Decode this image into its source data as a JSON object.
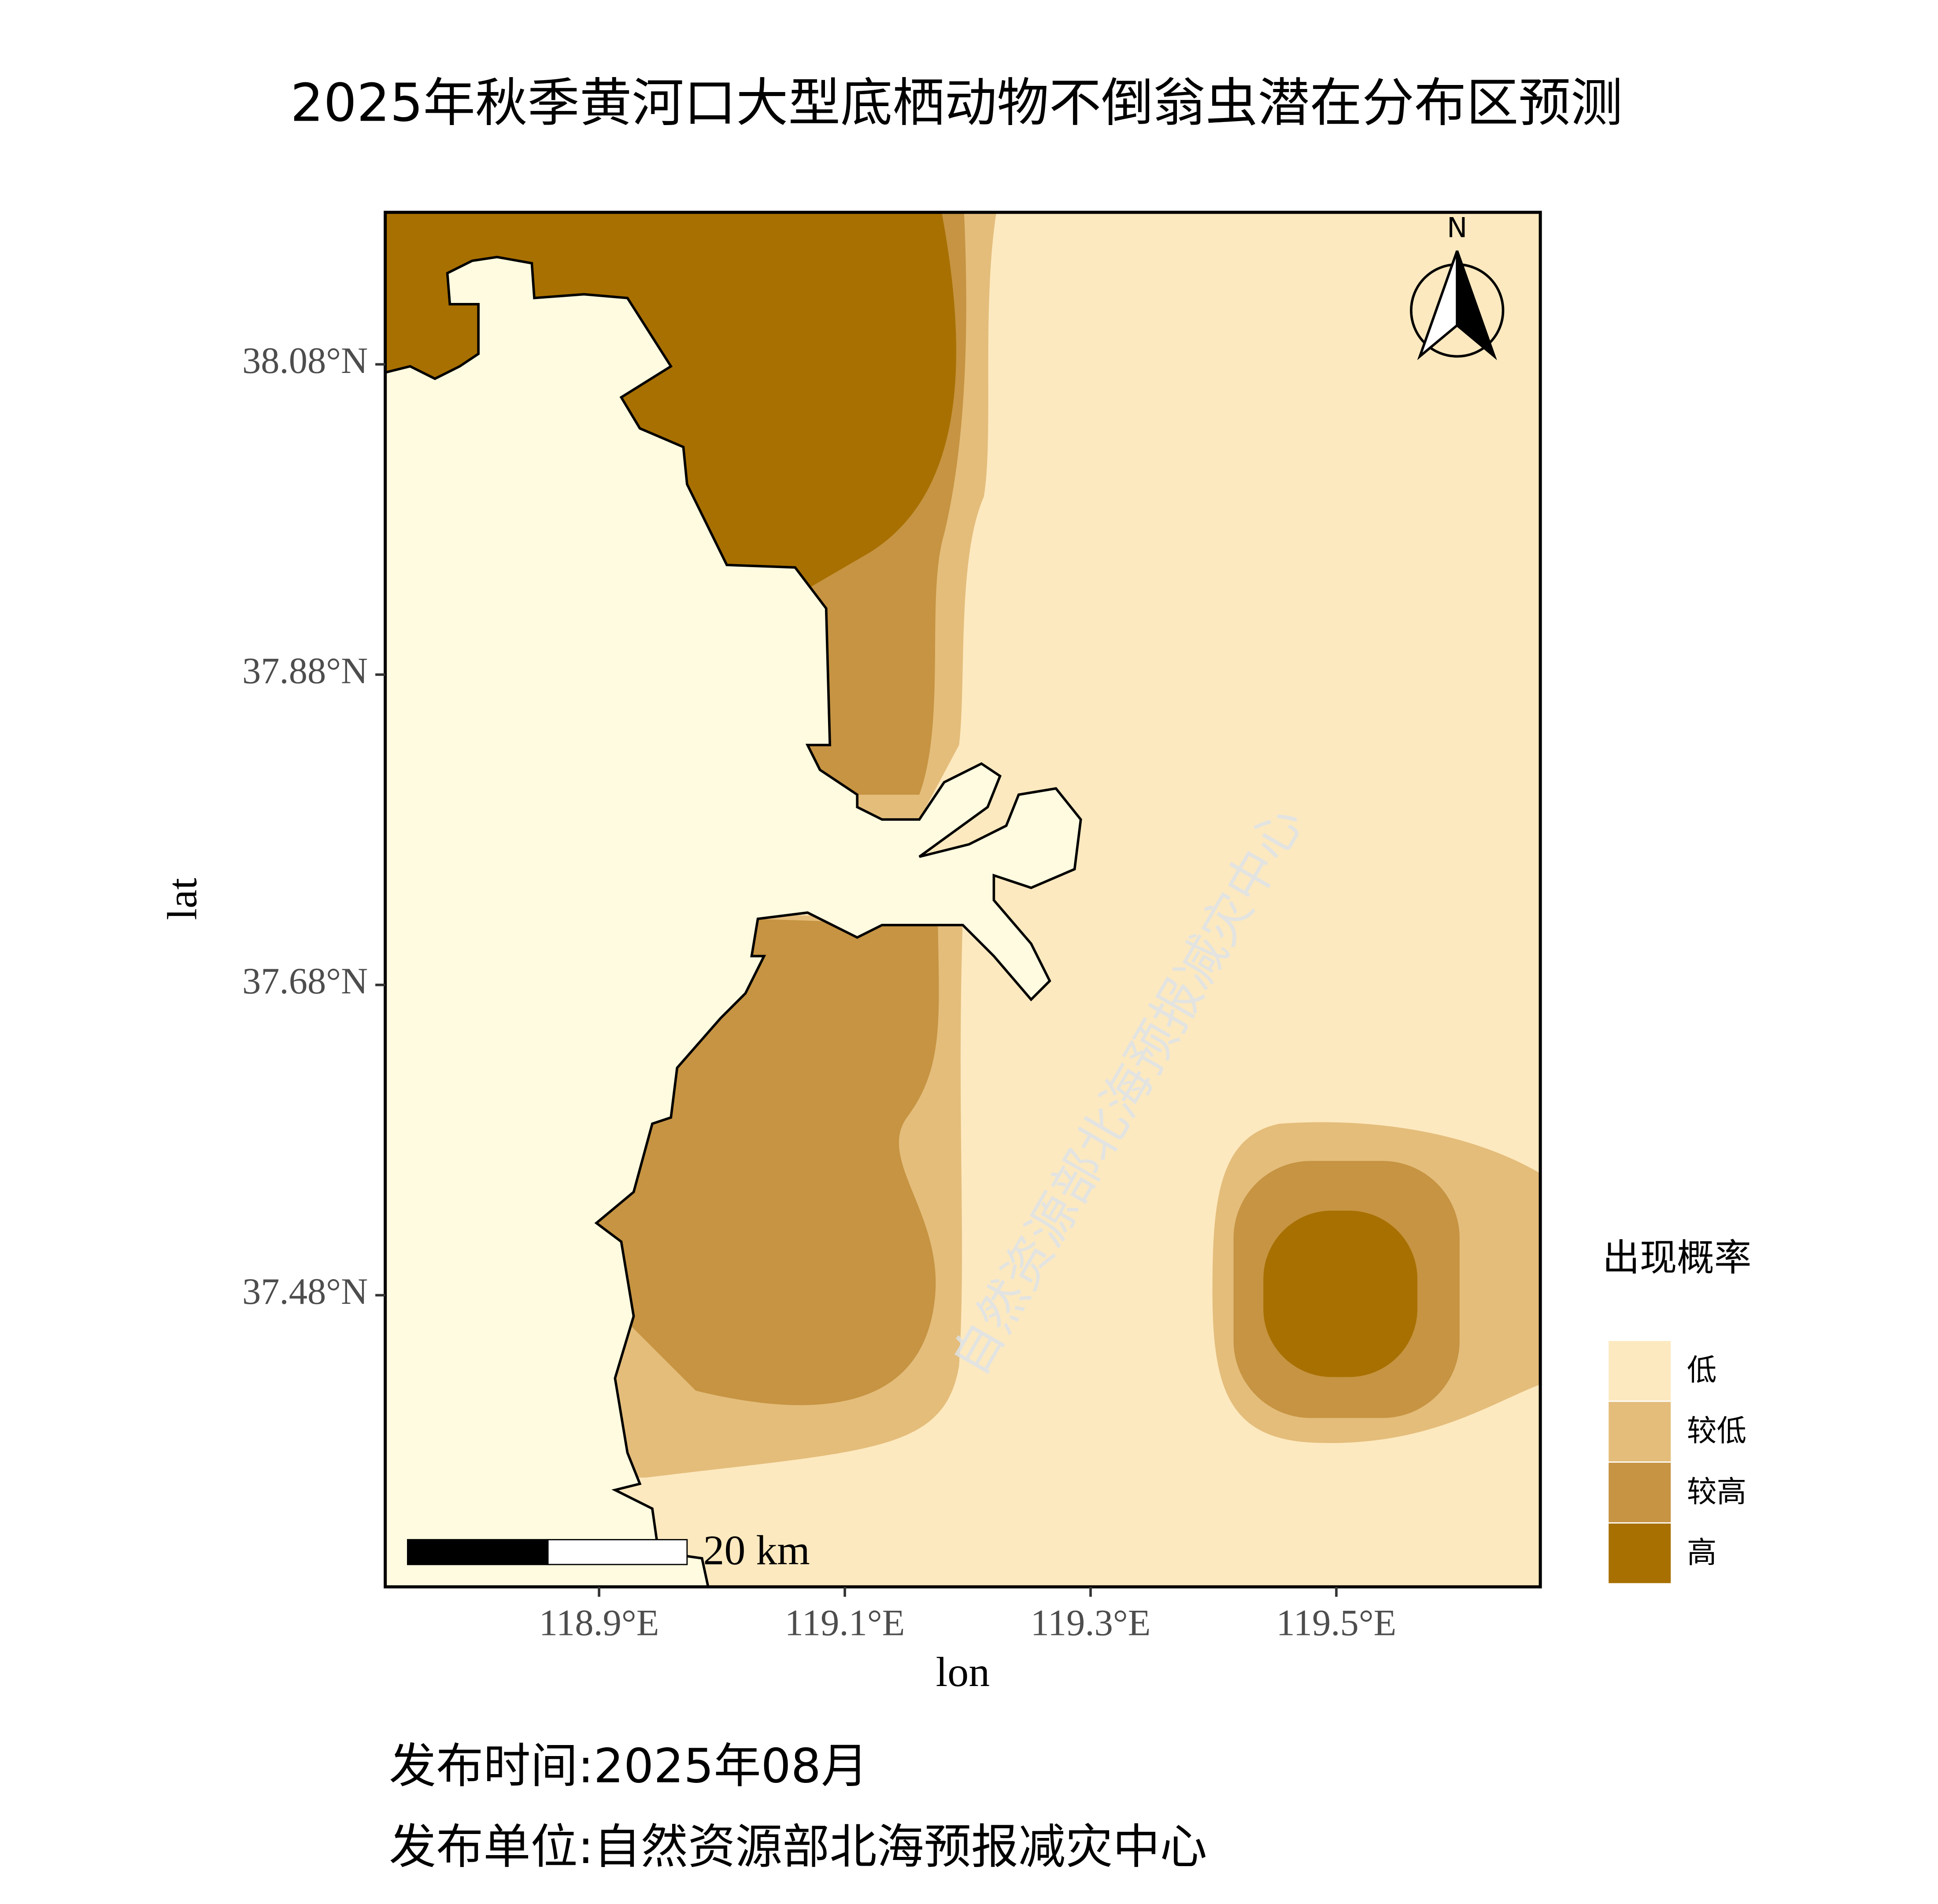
{
  "chart_data": {
    "type": "map",
    "title": "2025年秋季黄河口大型底栖动物不倒翁虫潜在分布区预测",
    "x_label": "lon",
    "y_label": "lat",
    "xlim": [
      118.726,
      119.666
    ],
    "ylim": [
      37.292,
      38.178
    ],
    "xticks": [
      {
        "value": 118.9,
        "label": "118.9°E"
      },
      {
        "value": 119.1,
        "label": "119.1°E"
      },
      {
        "value": 119.3,
        "label": "119.3°E"
      },
      {
        "value": 119.5,
        "label": "119.5°E"
      }
    ],
    "yticks": [
      {
        "value": 37.48,
        "label": "37.48°N"
      },
      {
        "value": 37.68,
        "label": "37.68°N"
      },
      {
        "value": 37.88,
        "label": "37.88°N"
      },
      {
        "value": 38.08,
        "label": "38.08°N"
      }
    ],
    "legend": {
      "title": "出现概率",
      "items": [
        {
          "name": "低",
          "color": "#fde9bf"
        },
        {
          "name": "较低",
          "color": "#e4bd7b"
        },
        {
          "name": "较高",
          "color": "#c69442"
        },
        {
          "name": "高",
          "color": "#a87000"
        }
      ]
    },
    "land_color": "#fefbe0",
    "scale_bar": "20 km",
    "north": "N",
    "watermark": "自然资源部北海预报减灾中心"
  },
  "footer": {
    "time": "发布时间:2025年08月",
    "unit": "发布单位:自然资源部北海预报减灾中心"
  }
}
